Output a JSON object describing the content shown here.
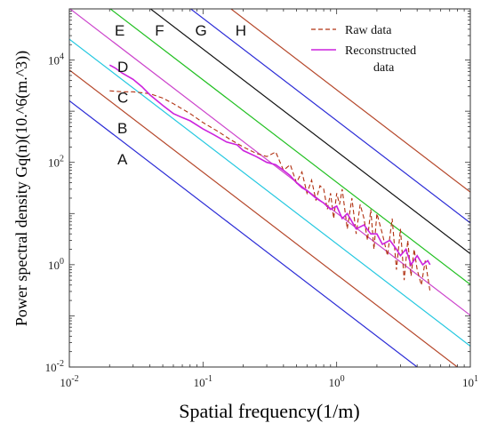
{
  "chart_data": {
    "type": "line",
    "xlabel": "Spatial frequency(1/m)",
    "ylabel": "Power spectral density Gq(n)(10.^6(m.^3))",
    "xscale": "log",
    "yscale": "log",
    "xlim": [
      0.01,
      10
    ],
    "ylim": [
      0.01,
      100000
    ],
    "grid": false,
    "legend_position": "top-right",
    "x_ticks": [
      {
        "value": 0.01,
        "base": "10",
        "exp": "-2"
      },
      {
        "value": 0.1,
        "base": "10",
        "exp": "-1"
      },
      {
        "value": 1,
        "base": "10",
        "exp": "0"
      },
      {
        "value": 10,
        "base": "10",
        "exp": "1"
      }
    ],
    "y_ticks": [
      {
        "value": 0.01,
        "base": "10",
        "exp": "-2"
      },
      {
        "value": 1,
        "base": "10",
        "exp": "0"
      },
      {
        "value": 100,
        "base": "10",
        "exp": "2"
      },
      {
        "value": 10000,
        "base": "10",
        "exp": "4"
      }
    ],
    "road_class_lines": [
      {
        "label": "A",
        "gq_at_0_1": 16,
        "color": "#2b2bd6"
      },
      {
        "label": "B",
        "gq_at_0_1": 64,
        "color": "#b5472a"
      },
      {
        "label": "C",
        "gq_at_0_1": 256,
        "color": "#24c8e0"
      },
      {
        "label": "D",
        "gq_at_0_1": 1024,
        "color": "#cc44cc"
      },
      {
        "label": "E",
        "gq_at_0_1": 4096,
        "color": "#22c022"
      },
      {
        "label": "F",
        "gq_at_0_1": 16384,
        "color": "#111111"
      },
      {
        "label": "G",
        "gq_at_0_1": 65536,
        "color": "#2b2bd6"
      },
      {
        "label": "H",
        "gq_at_0_1": 262144,
        "color": "#b5472a"
      }
    ],
    "series": [
      {
        "name": "Raw data",
        "color": "#b03010",
        "style": "dashed",
        "x": [
          0.02,
          0.025,
          0.03,
          0.04,
          0.05,
          0.06,
          0.08,
          0.1,
          0.13,
          0.16,
          0.2,
          0.25,
          0.3,
          0.35,
          0.4,
          0.45,
          0.5,
          0.55,
          0.6,
          0.65,
          0.7,
          0.75,
          0.8,
          0.85,
          0.9,
          0.95,
          1.0,
          1.05,
          1.1,
          1.2,
          1.3,
          1.4,
          1.5,
          1.6,
          1.7,
          1.8,
          1.9,
          2.0,
          2.2,
          2.4,
          2.6,
          2.8,
          3.0,
          3.2,
          3.4,
          3.6,
          3.8,
          4.0,
          4.3,
          4.6,
          5.0
        ],
        "y": [
          2500,
          2400,
          2400,
          2200,
          1800,
          1400,
          900,
          600,
          400,
          280,
          200,
          150,
          130,
          160,
          70,
          90,
          40,
          65,
          25,
          45,
          18,
          35,
          30,
          12,
          25,
          8,
          25,
          15,
          30,
          5,
          20,
          4,
          15,
          8,
          3,
          12,
          2,
          10,
          4,
          1.5,
          8,
          0.8,
          5,
          0.5,
          3,
          0.6,
          2,
          0.8,
          0.4,
          1.2,
          0.3
        ]
      },
      {
        "name": "Reconstructed data",
        "color": "#cc22dd",
        "style": "solid",
        "x": [
          0.02,
          0.022,
          0.025,
          0.03,
          0.035,
          0.04,
          0.05,
          0.06,
          0.07,
          0.08,
          0.1,
          0.12,
          0.15,
          0.18,
          0.2,
          0.25,
          0.3,
          0.35,
          0.4,
          0.45,
          0.5,
          0.55,
          0.6,
          0.7,
          0.8,
          0.9,
          1.0,
          1.1,
          1.2,
          1.4,
          1.6,
          1.8,
          2.0,
          2.2,
          2.5,
          2.8,
          3.0,
          3.3,
          3.6,
          4.0,
          4.4,
          4.8,
          5.0
        ],
        "y": [
          8000,
          7000,
          5500,
          4200,
          3000,
          2100,
          1300,
          900,
          750,
          650,
          450,
          350,
          250,
          220,
          170,
          130,
          100,
          90,
          70,
          55,
          40,
          32,
          28,
          20,
          16,
          12,
          14,
          8,
          10,
          5,
          6,
          4,
          4,
          2.5,
          3,
          2,
          1.5,
          2,
          1,
          1.5,
          1,
          1.2,
          1
        ]
      }
    ]
  }
}
